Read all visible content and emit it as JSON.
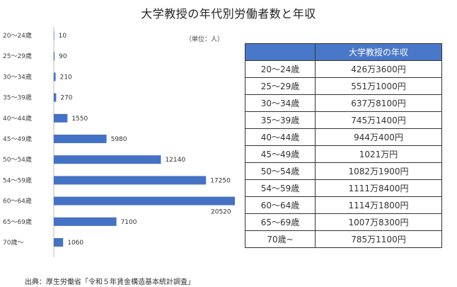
{
  "title": "大学教授の年代別労働者数と年収",
  "unit_label": "（単位：人）",
  "source": "出典：厚生労働省「令和５年賃金構造基本統計調査」",
  "colors": {
    "bar": "#4472c4",
    "table_header": "#4a78c8"
  },
  "chart_data": {
    "type": "bar",
    "orientation": "horizontal",
    "title": "",
    "categories": [
      "20～24歳",
      "25～29歳",
      "30～34歳",
      "35～39歳",
      "40～44歳",
      "45～49歳",
      "50～54歳",
      "54～59歳",
      "60～64歳",
      "65～69歳",
      "70歳～"
    ],
    "values": [
      10,
      90,
      210,
      270,
      1550,
      5980,
      12140,
      17250,
      20520,
      7100,
      1060
    ],
    "xlim": [
      0,
      20520
    ],
    "grid": false,
    "legend": "none"
  },
  "income_table": {
    "header_age": "",
    "header_income": "大学教授の年収",
    "rows": [
      {
        "age": "20～24歳",
        "income": "426万3600円"
      },
      {
        "age": "25～29歳",
        "income": "551万1000円"
      },
      {
        "age": "30～34歳",
        "income": "637万8100円"
      },
      {
        "age": "35～39歳",
        "income": "745万1400円"
      },
      {
        "age": "40～44歳",
        "income": "944万400円"
      },
      {
        "age": "45～49歳",
        "income": "1021万円"
      },
      {
        "age": "50～54歳",
        "income": "1082万1900円"
      },
      {
        "age": "54～59歳",
        "income": "1111万8400円"
      },
      {
        "age": "60～64歳",
        "income": "1114万1800円"
      },
      {
        "age": "65～69歳",
        "income": "1007万8300円"
      },
      {
        "age": "70歳~",
        "income": "785万1100円"
      }
    ]
  }
}
